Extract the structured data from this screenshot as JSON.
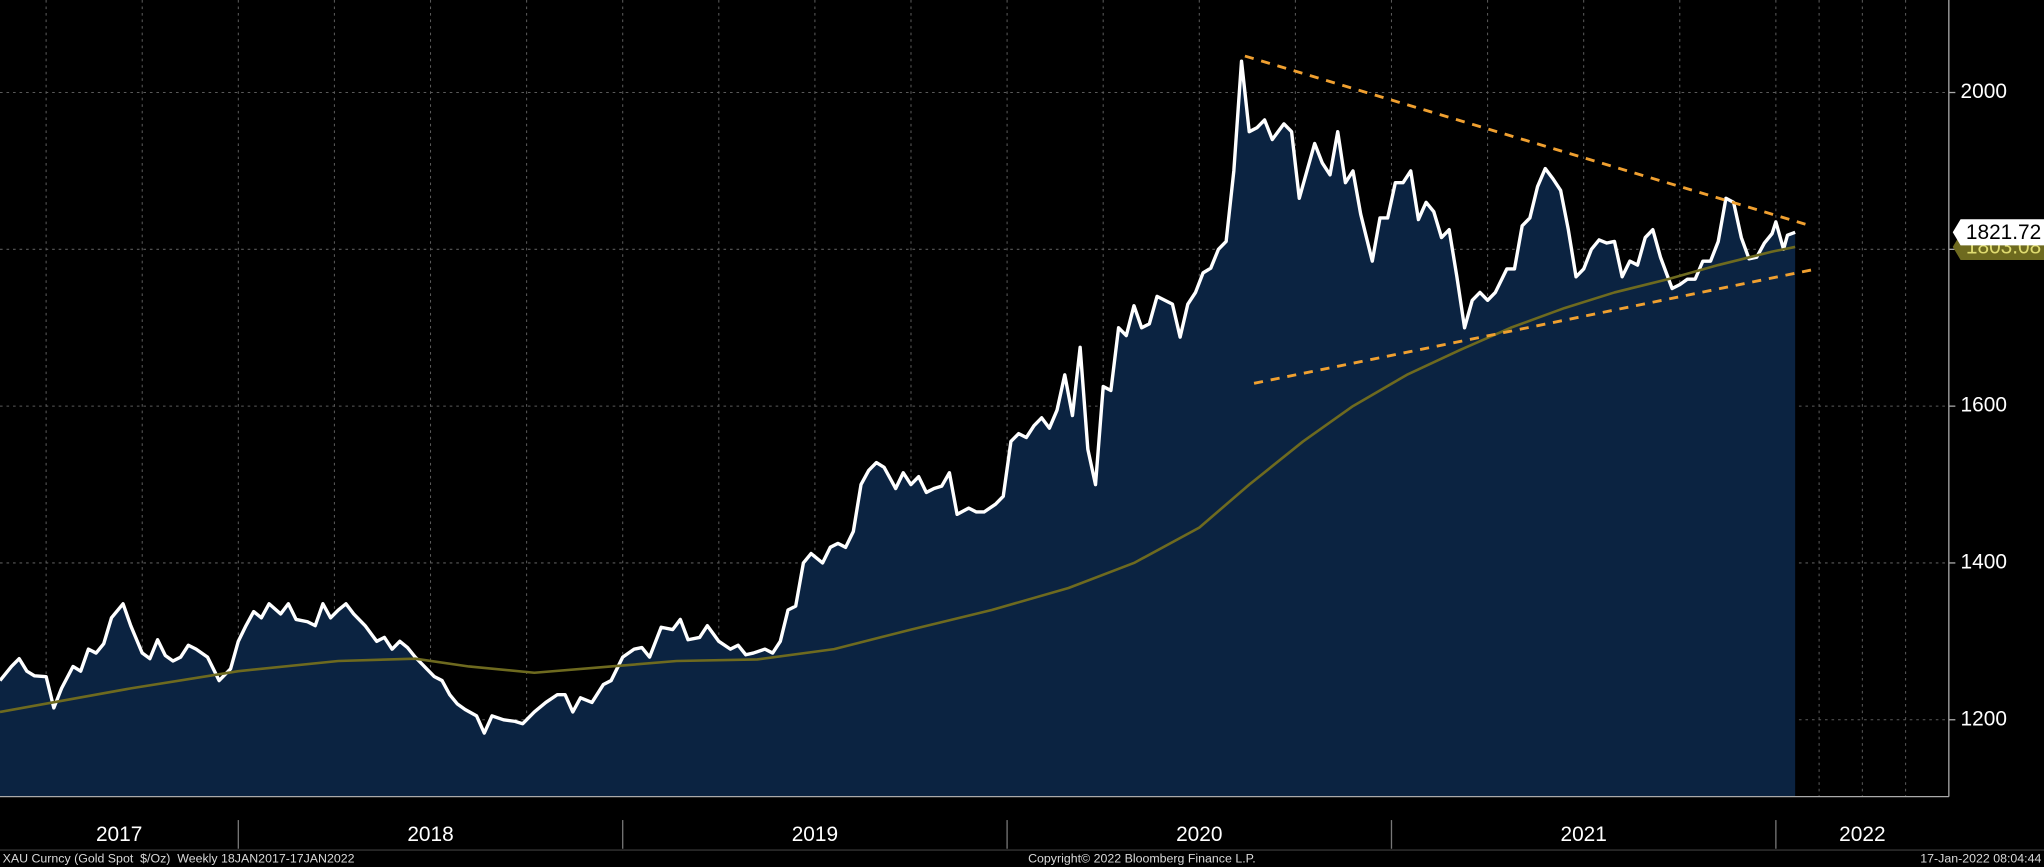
{
  "chart_data": {
    "type": "line",
    "xlim": [
      2017.38,
      2022.45
    ],
    "xticks": [
      2017,
      2018,
      2019,
      2020,
      2021,
      2022
    ],
    "ylim": [
      1102,
      2118
    ],
    "yticks": [
      1200,
      1400,
      1600,
      1800,
      2000
    ],
    "grid": true,
    "series": [
      {
        "color": "#ffffff",
        "area_color": "#0b2341",
        "x": [
          2017.38,
          2017.41,
          2017.43,
          2017.45,
          2017.47,
          2017.5,
          2017.52,
          2017.54,
          2017.57,
          2017.59,
          2017.61,
          2017.63,
          2017.65,
          2017.67,
          2017.7,
          2017.72,
          2017.75,
          2017.77,
          2017.79,
          2017.81,
          2017.83,
          2017.85,
          2017.87,
          2017.89,
          2017.92,
          2017.95,
          2017.98,
          2018.0,
          2018.02,
          2018.04,
          2018.06,
          2018.08,
          2018.11,
          2018.13,
          2018.15,
          2018.18,
          2018.2,
          2018.22,
          2018.24,
          2018.26,
          2018.28,
          2018.3,
          2018.33,
          2018.36,
          2018.38,
          2018.4,
          2018.42,
          2018.44,
          2018.46,
          2018.49,
          2018.51,
          2018.53,
          2018.55,
          2018.57,
          2018.59,
          2018.62,
          2018.64,
          2018.66,
          2018.69,
          2018.72,
          2018.74,
          2018.77,
          2018.8,
          2018.83,
          2018.85,
          2018.87,
          2018.89,
          2018.92,
          2018.95,
          2018.97,
          2019.0,
          2019.03,
          2019.05,
          2019.07,
          2019.1,
          2019.13,
          2019.15,
          2019.17,
          2019.2,
          2019.22,
          2019.25,
          2019.28,
          2019.3,
          2019.32,
          2019.34,
          2019.37,
          2019.39,
          2019.41,
          2019.43,
          2019.45,
          2019.47,
          2019.49,
          2019.52,
          2019.54,
          2019.56,
          2019.58,
          2019.6,
          2019.62,
          2019.64,
          2019.66,
          2019.68,
          2019.71,
          2019.73,
          2019.75,
          2019.77,
          2019.79,
          2019.81,
          2019.83,
          2019.85,
          2019.87,
          2019.9,
          2019.92,
          2019.94,
          2019.97,
          2019.99,
          2020.01,
          2020.03,
          2020.05,
          2020.07,
          2020.09,
          2020.11,
          2020.13,
          2020.15,
          2020.17,
          2020.19,
          2020.21,
          2020.23,
          2020.25,
          2020.27,
          2020.29,
          2020.31,
          2020.33,
          2020.35,
          2020.37,
          2020.39,
          2020.41,
          2020.43,
          2020.45,
          2020.47,
          2020.49,
          2020.51,
          2020.53,
          2020.55,
          2020.57,
          2020.59,
          2020.61,
          2020.63,
          2020.65,
          2020.67,
          2020.69,
          2020.72,
          2020.74,
          2020.76,
          2020.78,
          2020.8,
          2020.82,
          2020.84,
          2020.86,
          2020.88,
          2020.9,
          2020.92,
          2020.95,
          2020.97,
          2020.99,
          2021.01,
          2021.03,
          2021.05,
          2021.07,
          2021.09,
          2021.11,
          2021.13,
          2021.15,
          2021.17,
          2021.19,
          2021.21,
          2021.23,
          2021.25,
          2021.27,
          2021.3,
          2021.32,
          2021.34,
          2021.36,
          2021.38,
          2021.4,
          2021.42,
          2021.44,
          2021.46,
          2021.48,
          2021.5,
          2021.52,
          2021.54,
          2021.56,
          2021.58,
          2021.6,
          2021.62,
          2021.64,
          2021.66,
          2021.68,
          2021.7,
          2021.73,
          2021.75,
          2021.77,
          2021.79,
          2021.81,
          2021.83,
          2021.85,
          2021.87,
          2021.89,
          2021.91,
          2021.93,
          2021.95,
          2021.97,
          2021.99,
          2022.0,
          2022.02,
          2022.03,
          2022.05
        ],
        "values": [
          1250,
          1268,
          1278,
          1262,
          1256,
          1255,
          1215,
          1240,
          1268,
          1262,
          1290,
          1285,
          1297,
          1330,
          1348,
          1320,
          1285,
          1278,
          1302,
          1282,
          1275,
          1280,
          1295,
          1290,
          1280,
          1250,
          1265,
          1300,
          1320,
          1338,
          1330,
          1348,
          1335,
          1348,
          1328,
          1325,
          1320,
          1348,
          1330,
          1340,
          1348,
          1335,
          1320,
          1300,
          1305,
          1290,
          1300,
          1292,
          1280,
          1265,
          1255,
          1250,
          1232,
          1220,
          1213,
          1205,
          1183,
          1205,
          1200,
          1198,
          1195,
          1210,
          1222,
          1232,
          1232,
          1210,
          1228,
          1222,
          1245,
          1250,
          1280,
          1290,
          1292,
          1280,
          1318,
          1315,
          1328,
          1302,
          1305,
          1320,
          1300,
          1290,
          1295,
          1283,
          1285,
          1290,
          1285,
          1300,
          1340,
          1345,
          1400,
          1412,
          1400,
          1420,
          1425,
          1420,
          1440,
          1500,
          1518,
          1528,
          1522,
          1495,
          1515,
          1500,
          1510,
          1490,
          1495,
          1498,
          1515,
          1462,
          1470,
          1465,
          1465,
          1475,
          1485,
          1555,
          1565,
          1560,
          1575,
          1585,
          1572,
          1595,
          1640,
          1588,
          1675,
          1545,
          1500,
          1625,
          1620,
          1700,
          1690,
          1728,
          1700,
          1705,
          1740,
          1735,
          1730,
          1688,
          1730,
          1745,
          1770,
          1776,
          1800,
          1810,
          1900,
          2040,
          1950,
          1955,
          1965,
          1940,
          1960,
          1950,
          1865,
          1900,
          1935,
          1910,
          1895,
          1950,
          1885,
          1900,
          1845,
          1785,
          1840,
          1840,
          1885,
          1885,
          1900,
          1838,
          1860,
          1848,
          1815,
          1825,
          1765,
          1700,
          1735,
          1745,
          1735,
          1745,
          1775,
          1775,
          1830,
          1840,
          1880,
          1903,
          1890,
          1875,
          1825,
          1765,
          1775,
          1800,
          1812,
          1808,
          1810,
          1765,
          1785,
          1780,
          1815,
          1825,
          1790,
          1750,
          1755,
          1762,
          1762,
          1785,
          1785,
          1810,
          1865,
          1860,
          1815,
          1788,
          1790,
          1808,
          1820,
          1835,
          1800,
          1818,
          1821.72
        ]
      },
      {
        "color": "#6e6a1f",
        "x": [
          2017.38,
          2017.72,
          2018.0,
          2018.26,
          2018.46,
          2018.6,
          2018.77,
          2018.97,
          2019.14,
          2019.35,
          2019.55,
          2019.75,
          2019.96,
          2020.16,
          2020.33,
          2020.5,
          2020.63,
          2020.77,
          2020.9,
          2021.04,
          2021.18,
          2021.31,
          2021.45,
          2021.58,
          2021.72,
          2021.85,
          2021.99,
          2022.05
        ],
        "values": [
          1210,
          1240,
          1262,
          1275,
          1278,
          1268,
          1260,
          1268,
          1275,
          1277,
          1290,
          1315,
          1340,
          1368,
          1400,
          1445,
          1500,
          1555,
          1600,
          1640,
          1672,
          1700,
          1725,
          1745,
          1762,
          1780,
          1797,
          1803.08
        ]
      }
    ],
    "footer_left": "XAU Curncy (Gold Spot  $/Oz)  Weekly 18JAN2017-17JAN2022",
    "footer_center": "Copyright© 2022 Bloomberg Finance L.P.",
    "footer_right": "17-Jan-2022 08:04:44"
  }
}
